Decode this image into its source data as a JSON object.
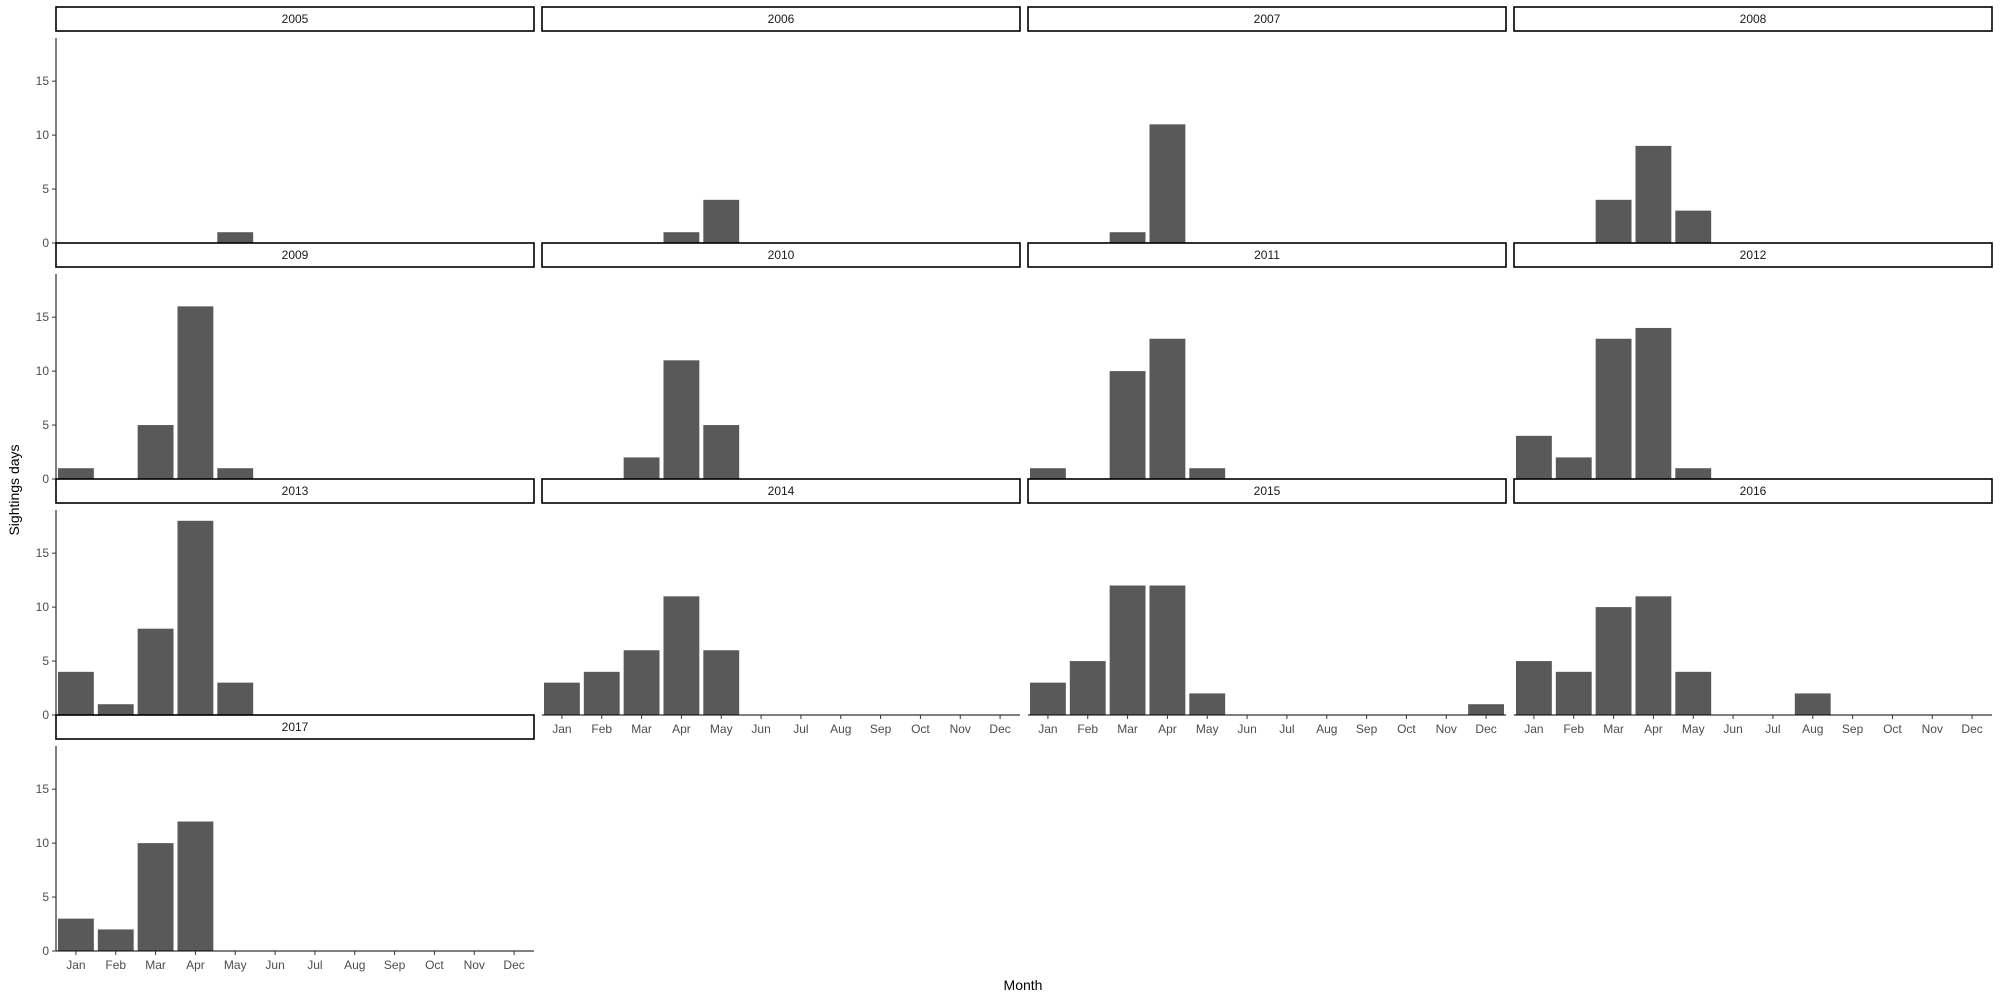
{
  "chart_data": {
    "type": "bar",
    "title": "",
    "xlabel": "Month",
    "ylabel": "Sightings days",
    "ylim": [
      0,
      19
    ],
    "yticks": [
      0,
      5,
      10,
      15
    ],
    "categories": [
      "Jan",
      "Feb",
      "Mar",
      "Apr",
      "May",
      "Jun",
      "Jul",
      "Aug",
      "Sep",
      "Oct",
      "Nov",
      "Dec"
    ],
    "facet_layout": "4 columns, panels filled left to right",
    "grid": false,
    "bar_color": "#595959",
    "facets": [
      {
        "year": "2005",
        "values": [
          0,
          0,
          0,
          0,
          1,
          0,
          0,
          0,
          0,
          0,
          0,
          0
        ]
      },
      {
        "year": "2006",
        "values": [
          0,
          0,
          0,
          1,
          4,
          0,
          0,
          0,
          0,
          0,
          0,
          0
        ]
      },
      {
        "year": "2007",
        "values": [
          0,
          0,
          1,
          11,
          0,
          0,
          0,
          0,
          0,
          0,
          0,
          0
        ]
      },
      {
        "year": "2008",
        "values": [
          0,
          0,
          4,
          9,
          3,
          0,
          0,
          0,
          0,
          0,
          0,
          0
        ]
      },
      {
        "year": "2009",
        "values": [
          1,
          0,
          5,
          16,
          1,
          0,
          0,
          0,
          0,
          0,
          0,
          0
        ]
      },
      {
        "year": "2010",
        "values": [
          0,
          0,
          2,
          11,
          5,
          0,
          0,
          0,
          0,
          0,
          0,
          0
        ]
      },
      {
        "year": "2011",
        "values": [
          1,
          0,
          10,
          13,
          1,
          0,
          0,
          0,
          0,
          0,
          0,
          0
        ]
      },
      {
        "year": "2012",
        "values": [
          4,
          2,
          13,
          14,
          1,
          0,
          0,
          0,
          0,
          0,
          0,
          0
        ]
      },
      {
        "year": "2013",
        "values": [
          4,
          1,
          8,
          18,
          3,
          0,
          0,
          0,
          0,
          0,
          0,
          0
        ]
      },
      {
        "year": "2014",
        "values": [
          3,
          4,
          6,
          11,
          6,
          0,
          0,
          0,
          0,
          0,
          0,
          0
        ]
      },
      {
        "year": "2015",
        "values": [
          3,
          5,
          12,
          12,
          2,
          0,
          0,
          0,
          0,
          0,
          0,
          1
        ]
      },
      {
        "year": "2016",
        "values": [
          5,
          4,
          10,
          11,
          4,
          0,
          0,
          2,
          0,
          0,
          0,
          0
        ]
      },
      {
        "year": "2017",
        "values": [
          3,
          2,
          10,
          12,
          0,
          0,
          0,
          0,
          0,
          0,
          0,
          0
        ]
      }
    ]
  }
}
